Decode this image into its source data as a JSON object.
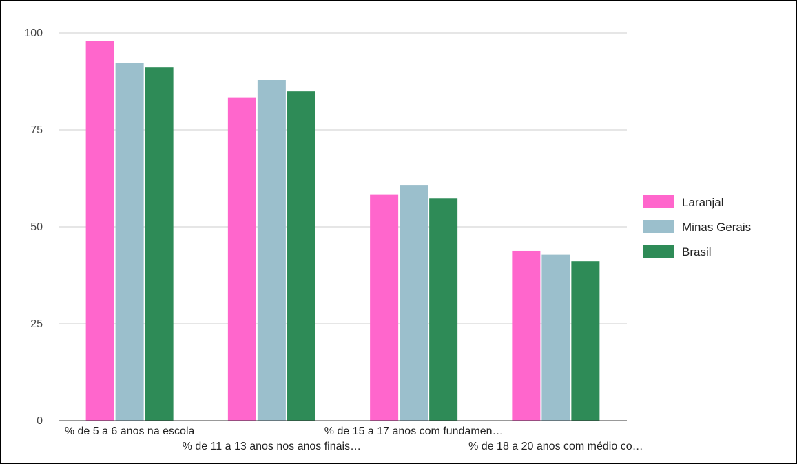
{
  "chart_data": {
    "type": "bar",
    "title": "",
    "xlabel": "",
    "ylabel": "",
    "categories": [
      "% de 5 a 6 anos na escola",
      "% de 11 a 13 anos nos anos finais…",
      "% de 15 a 17 anos com fundamen…",
      "% de 18 a 20 anos com médio co…"
    ],
    "series": [
      {
        "name": "Laranjal",
        "color": "#ff66cc",
        "values": [
          98,
          83.4,
          58.4,
          43.8
        ]
      },
      {
        "name": "Minas Gerais",
        "color": "#9bbfcc",
        "values": [
          92.2,
          87.8,
          60.8,
          42.8
        ]
      },
      {
        "name": "Brasil",
        "color": "#2e8b57",
        "values": [
          91.1,
          84.9,
          57.4,
          41.1
        ]
      }
    ],
    "ylim": [
      0,
      100
    ],
    "yticks": [
      0,
      25,
      50,
      75,
      100
    ],
    "grid": true,
    "legend_position": "right"
  }
}
